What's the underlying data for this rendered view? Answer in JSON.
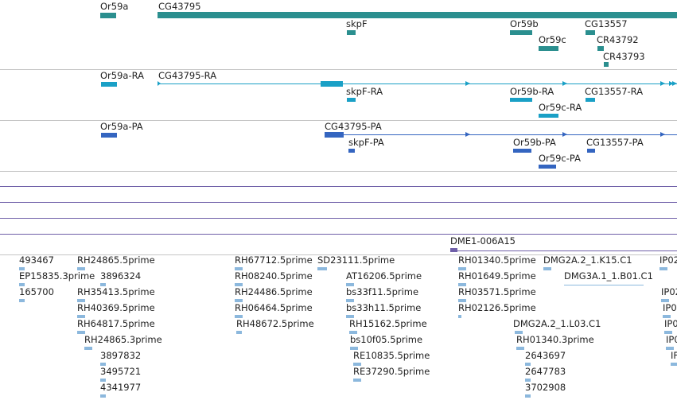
{
  "colors": {
    "gene": "#2b8f8f",
    "rna": "#1aa0c6",
    "protein": "#3465c0",
    "est": "#8cb8dd",
    "clone": "#6f5fa8",
    "separator": "#c4c4c4"
  },
  "genes": {
    "or59a": "Or59a",
    "cg43795": "CG43795",
    "skpf": "skpF",
    "or59b": "Or59b",
    "or59c": "Or59c",
    "cg13557": "CG13557",
    "cr43792": "CR43792",
    "cr43793": "CR43793"
  },
  "transcripts": {
    "or59a": "Or59a-RA",
    "cg43795": "CG43795-RA",
    "skpf": "skpF-RA",
    "or59b": "Or59b-RA",
    "or59c": "Or59c-RA",
    "cg13557": "CG13557-RA"
  },
  "proteins": {
    "or59a": "Or59a-PA",
    "cg43795": "CG43795-PA",
    "skpf": "skpF-PA",
    "or59b": "Or59b-PA",
    "or59c": "Or59c-PA",
    "cg13557": "CG13557-PA"
  },
  "clone": {
    "label": "DME1-006A15"
  },
  "ests": {
    "e1": "493467",
    "e2": "EP15835.3prime",
    "e3": "165700",
    "e4": "RH24865.5prime",
    "e5": "3896324",
    "e6": "RH35413.5prime",
    "e7": "RH40369.5prime",
    "e8": "RH64817.5prime",
    "e9": "RH24865.3prime",
    "e10": "3897832",
    "e11": "3495721",
    "e12": "4341977",
    "e13": "RH67712.5prime",
    "e14": "SD23111.5prime",
    "e15": "RH08240.5prime",
    "e16": "RH24486.5prime",
    "e17": "RH06464.5prime",
    "e18": "RH48672.5prime",
    "e19": "AT16206.5prime",
    "e20": "bs33f11.5prime",
    "e21": "bs33h11.5prime",
    "e22": "RH15162.5prime",
    "e23": "bs10f05.5prime",
    "e24": "RE10835.5prime",
    "e25": "RE37290.5prime",
    "e26": "RH01340.5prime",
    "e27": "RH01649.5prime",
    "e28": "RH03571.5prime",
    "e29": "RH02126.5prime",
    "e30": "DMG2A.2_1.K15.C1",
    "e31": "DMG3A.1_1.B01.C1",
    "e32": "DMG2A.2_1.L03.C1",
    "e33": "RH01340.3prime",
    "e34": "2643697",
    "e35": "2647783",
    "e36": "3702908",
    "e37": "IP02",
    "e38": "IP02",
    "e39": "IP0",
    "e40": "IP0",
    "e41": "IP0",
    "e42": "IF"
  }
}
